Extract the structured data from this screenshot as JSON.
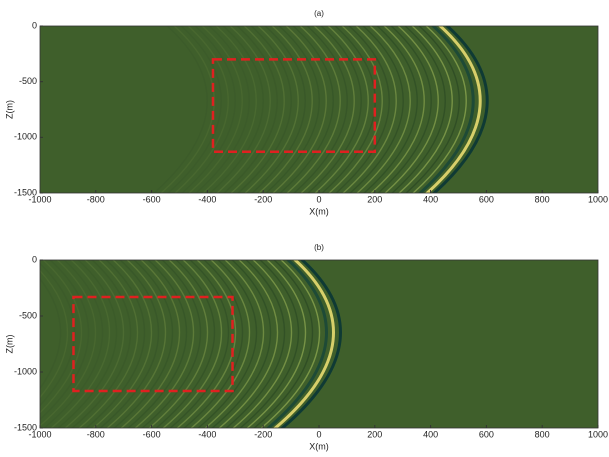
{
  "chart_data": [
    {
      "type": "image",
      "title": "(a)",
      "xlabel": "X(m)",
      "ylabel": "Z(m)",
      "xlim": [
        -1000,
        1000
      ],
      "xticks": [
        -1000,
        -800,
        -600,
        -400,
        -200,
        0,
        200,
        400,
        600,
        800,
        1000
      ],
      "ylim": [
        -1500,
        0
      ],
      "yticks": [
        0,
        -500,
        -1000,
        -1500
      ],
      "region": {
        "x": [
          -380,
          200
        ],
        "y": [
          -1130,
          -300
        ],
        "color": "#e02020"
      }
    },
    {
      "type": "image",
      "title": "(b)",
      "xlabel": "X(m)",
      "ylabel": "Z(m)",
      "xlim": [
        -1000,
        1000
      ],
      "xticks": [
        -1000,
        -800,
        -600,
        -400,
        -200,
        0,
        200,
        400,
        600,
        800,
        1000
      ],
      "ylim": [
        -1500,
        0
      ],
      "yticks": [
        0,
        -500,
        -1000,
        -1500
      ],
      "region": {
        "x": [
          -880,
          -310
        ],
        "y": [
          -1170,
          -330
        ],
        "color": "#e02020"
      }
    }
  ]
}
